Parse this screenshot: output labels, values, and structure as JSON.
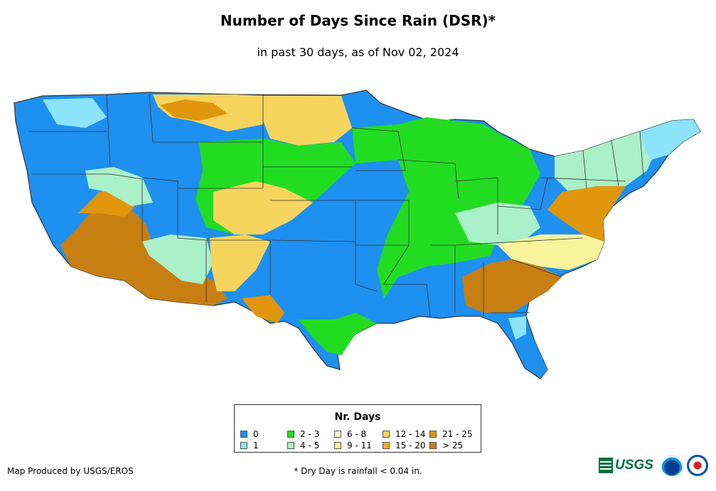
{
  "title": "Number of Days Since Rain (DSR)*",
  "subtitle": "in past 30 days, as of Nov 02, 2024",
  "legend": {
    "title": "Nr. Days",
    "classes": [
      {
        "label": "0",
        "color": "#1e90f0"
      },
      {
        "label": "1",
        "color": "#8be4fa"
      },
      {
        "label": "2 - 3",
        "color": "#22dc22"
      },
      {
        "label": "4 - 5",
        "color": "#aaf0c8"
      },
      {
        "label": "6 - 8",
        "color": "#fbfbd0"
      },
      {
        "label": "9 - 11",
        "color": "#f9f39c"
      },
      {
        "label": "12 - 14",
        "color": "#f7d45e"
      },
      {
        "label": "15 - 20",
        "color": "#f2ae1a"
      },
      {
        "label": "21 - 25",
        "color": "#e0960c"
      },
      {
        "label": "> 25",
        "color": "#c87f12"
      }
    ]
  },
  "footer": {
    "credit": "Map Produced by USGS/EROS",
    "footnote": "* Dry Day is rainfall < 0.04 in."
  },
  "logos": {
    "usgs": "USGS"
  },
  "colors": {
    "state_border": "#333333"
  }
}
